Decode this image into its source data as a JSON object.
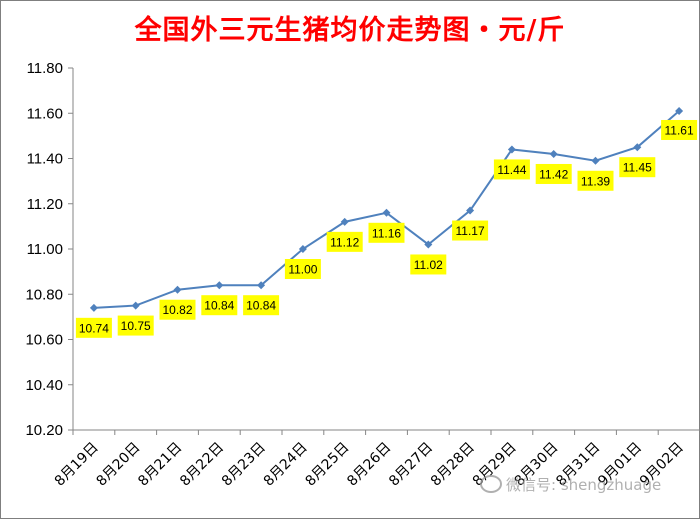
{
  "chart_data": {
    "type": "line",
    "title": "全国外三元生猪均价走势图・元/斤",
    "xlabel": "",
    "ylabel": "",
    "ylim": [
      10.2,
      11.8
    ],
    "ytick_step": 0.2,
    "grid": false,
    "legend": "none",
    "categories": [
      "8月19日",
      "8月20日",
      "8月21日",
      "8月22日",
      "8月23日",
      "8月24日",
      "8月25日",
      "8月26日",
      "8月27日",
      "8月28日",
      "8月29日",
      "8月30日",
      "8月31日",
      "9月01日",
      "9月02日"
    ],
    "values": [
      10.74,
      10.75,
      10.82,
      10.84,
      10.84,
      11.0,
      11.12,
      11.16,
      11.02,
      11.17,
      11.44,
      11.42,
      11.39,
      11.45,
      11.61
    ],
    "data_labels": [
      "10.74",
      "10.75",
      "10.82",
      "10.84",
      "10.84",
      "11.00",
      "11.12",
      "11.16",
      "11.02",
      "11.17",
      "11.44",
      "11.42",
      "11.39",
      "11.45",
      "11.61"
    ],
    "y_tick_labels": [
      "11.80",
      "11.60",
      "11.40",
      "11.20",
      "11.00",
      "10.80",
      "10.60",
      "10.40",
      "10.20"
    ],
    "colors": {
      "line": "#4f81bd",
      "label_bg": "#ffff00",
      "title": "#ff0000"
    }
  },
  "watermark": {
    "icon": "wechat-icon",
    "text": "微信号: shengzhuage"
  }
}
